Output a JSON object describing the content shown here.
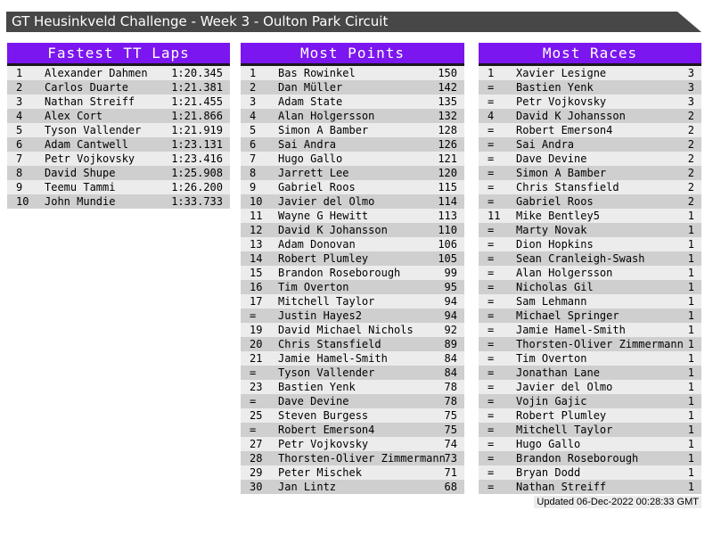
{
  "window": {
    "title": "GT Heusinkveld Challenge - Week 3 - Oulton Park Circuit",
    "updated": "Updated 06-Dec-2022 00:28:33 GMT"
  },
  "colors": {
    "titlebar_bg": "#474747",
    "header_bg": "#7B16F0",
    "header_underline": "#191919",
    "row_light": "#ECECEC",
    "row_dark": "#CFCFCF"
  },
  "panels": [
    {
      "id": "fastest-tt-laps",
      "title": "Fastest TT Laps",
      "columns": [
        "rank",
        "driver",
        "time"
      ],
      "rows": [
        [
          "1",
          "Alexander Dahmen",
          "1:20.345"
        ],
        [
          "2",
          "Carlos Duarte",
          "1:21.381"
        ],
        [
          "3",
          "Nathan Streiff",
          "1:21.455"
        ],
        [
          "4",
          "Alex Cort",
          "1:21.866"
        ],
        [
          "5",
          "Tyson Vallender",
          "1:21.919"
        ],
        [
          "6",
          "Adam Cantwell",
          "1:23.131"
        ],
        [
          "7",
          "Petr Vojkovsky",
          "1:23.416"
        ],
        [
          "8",
          "David Shupe",
          "1:25.908"
        ],
        [
          "9",
          "Teemu Tammi",
          "1:26.200"
        ],
        [
          "10",
          "John Mundie",
          "1:33.733"
        ]
      ]
    },
    {
      "id": "most-points",
      "title": "Most Points",
      "columns": [
        "rank",
        "driver",
        "points"
      ],
      "rows": [
        [
          "1",
          "Bas Rowinkel",
          "150"
        ],
        [
          "2",
          "Dan Müller",
          "142"
        ],
        [
          "3",
          "Adam State",
          "135"
        ],
        [
          "4",
          "Alan Holgersson",
          "132"
        ],
        [
          "5",
          "Simon A Bamber",
          "128"
        ],
        [
          "6",
          "Sai Andra",
          "126"
        ],
        [
          "7",
          "Hugo Gallo",
          "121"
        ],
        [
          "8",
          "Jarrett Lee",
          "120"
        ],
        [
          "9",
          "Gabriel Roos",
          "115"
        ],
        [
          "10",
          "Javier del Olmo",
          "114"
        ],
        [
          "11",
          "Wayne G Hewitt",
          "113"
        ],
        [
          "12",
          "David K Johansson",
          "110"
        ],
        [
          "13",
          "Adam Donovan",
          "106"
        ],
        [
          "14",
          "Robert Plumley",
          "105"
        ],
        [
          "15",
          "Brandon Roseborough",
          "99"
        ],
        [
          "16",
          "Tim Overton",
          "95"
        ],
        [
          "17",
          "Mitchell Taylor",
          "94"
        ],
        [
          "=",
          "Justin Hayes2",
          "94"
        ],
        [
          "19",
          "David Michael Nichols",
          "92"
        ],
        [
          "20",
          "Chris Stansfield",
          "89"
        ],
        [
          "21",
          "Jamie Hamel-Smith",
          "84"
        ],
        [
          "=",
          "Tyson Vallender",
          "84"
        ],
        [
          "23",
          "Bastien Yenk",
          "78"
        ],
        [
          "=",
          "Dave Devine",
          "78"
        ],
        [
          "25",
          "Steven Burgess",
          "75"
        ],
        [
          "=",
          "Robert Emerson4",
          "75"
        ],
        [
          "27",
          "Petr Vojkovsky",
          "74"
        ],
        [
          "28",
          "Thorsten-Oliver Zimmermann",
          "73"
        ],
        [
          "29",
          "Peter Mischek",
          "71"
        ],
        [
          "30",
          "Jan Lintz",
          "68"
        ]
      ]
    },
    {
      "id": "most-races",
      "title": "Most Races",
      "columns": [
        "rank",
        "driver",
        "races"
      ],
      "rows": [
        [
          "1",
          "Xavier Lesigne",
          "3"
        ],
        [
          "=",
          "Bastien Yenk",
          "3"
        ],
        [
          "=",
          "Petr Vojkovsky",
          "3"
        ],
        [
          "4",
          "David K Johansson",
          "2"
        ],
        [
          "=",
          "Robert Emerson4",
          "2"
        ],
        [
          "=",
          "Sai Andra",
          "2"
        ],
        [
          "=",
          "Dave Devine",
          "2"
        ],
        [
          "=",
          "Simon A Bamber",
          "2"
        ],
        [
          "=",
          "Chris Stansfield",
          "2"
        ],
        [
          "=",
          "Gabriel Roos",
          "2"
        ],
        [
          "11",
          "Mike Bentley5",
          "1"
        ],
        [
          "=",
          "Marty Novak",
          "1"
        ],
        [
          "=",
          "Dion Hopkins",
          "1"
        ],
        [
          "=",
          "Sean Cranleigh-Swash",
          "1"
        ],
        [
          "=",
          "Alan Holgersson",
          "1"
        ],
        [
          "=",
          "Nicholas Gil",
          "1"
        ],
        [
          "=",
          "Sam Lehmann",
          "1"
        ],
        [
          "=",
          "Michael Springer",
          "1"
        ],
        [
          "=",
          "Jamie Hamel-Smith",
          "1"
        ],
        [
          "=",
          "Thorsten-Oliver Zimmermann",
          "1"
        ],
        [
          "=",
          "Tim Overton",
          "1"
        ],
        [
          "=",
          "Jonathan Lane",
          "1"
        ],
        [
          "=",
          "Javier del Olmo",
          "1"
        ],
        [
          "=",
          "Vojin Gajic",
          "1"
        ],
        [
          "=",
          "Robert Plumley",
          "1"
        ],
        [
          "=",
          "Mitchell Taylor",
          "1"
        ],
        [
          "=",
          "Hugo Gallo",
          "1"
        ],
        [
          "=",
          "Brandon Roseborough",
          "1"
        ],
        [
          "=",
          "Bryan Dodd",
          "1"
        ],
        [
          "=",
          "Nathan Streiff",
          "1"
        ]
      ]
    }
  ]
}
